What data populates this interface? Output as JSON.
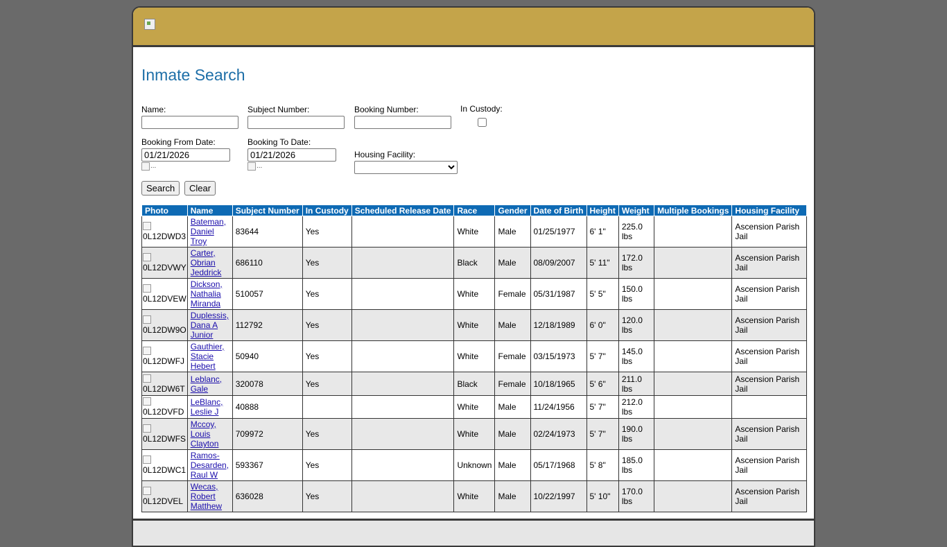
{
  "page": {
    "title": "Inmate Search"
  },
  "form": {
    "name_label": "Name:",
    "name_value": "",
    "subject_label": "Subject Number:",
    "subject_value": "",
    "booking_label": "Booking Number:",
    "booking_value": "",
    "custody_label": "In Custody:",
    "custody_checked": false,
    "from_label": "Booking From Date:",
    "from_value": "01/21/2026",
    "to_label": "Booking To Date:",
    "to_value": "01/21/2026",
    "calendar_alt": "...",
    "housing_label": "Housing Facility:",
    "housing_value": "",
    "search_label": "Search",
    "clear_label": "Clear"
  },
  "table": {
    "headers": [
      "Photo",
      "Name",
      "Subject Number",
      "In Custody",
      "Scheduled Release Date",
      "Race",
      "Gender",
      "Date of Birth",
      "Height",
      "Weight",
      "Multiple Bookings",
      "Housing Facility"
    ],
    "rows": [
      {
        "photo": "0L12DWD3",
        "name": "Bateman, Daniel Troy",
        "subject": "83644",
        "custody": "Yes",
        "release": "",
        "race": "White",
        "gender": "Male",
        "dob": "01/25/1977",
        "height": "6' 1\"",
        "weight": "225.0 lbs",
        "multiple": "",
        "housing": "Ascension Parish Jail"
      },
      {
        "photo": "0L12DVWY",
        "name": "Carter, Obrian Jeddrick",
        "subject": "686110",
        "custody": "Yes",
        "release": "",
        "race": "Black",
        "gender": "Male",
        "dob": "08/09/2007",
        "height": "5' 11\"",
        "weight": "172.0 lbs",
        "multiple": "",
        "housing": "Ascension Parish Jail"
      },
      {
        "photo": "0L12DVEW",
        "name": "Dickson, Nathalia Miranda",
        "subject": "510057",
        "custody": "Yes",
        "release": "",
        "race": "White",
        "gender": "Female",
        "dob": "05/31/1987",
        "height": "5' 5\"",
        "weight": "150.0 lbs",
        "multiple": "",
        "housing": "Ascension Parish Jail"
      },
      {
        "photo": "0L12DW9O",
        "name": "Duplessis, Dana A Junior",
        "subject": "112792",
        "custody": "Yes",
        "release": "",
        "race": "White",
        "gender": "Male",
        "dob": "12/18/1989",
        "height": "6' 0\"",
        "weight": "120.0 lbs",
        "multiple": "",
        "housing": "Ascension Parish Jail"
      },
      {
        "photo": "0L12DWFJ",
        "name": "Gauthier, Stacie Hebert",
        "subject": "50940",
        "custody": "Yes",
        "release": "",
        "race": "White",
        "gender": "Female",
        "dob": "03/15/1973",
        "height": "5' 7\"",
        "weight": "145.0 lbs",
        "multiple": "",
        "housing": "Ascension Parish Jail"
      },
      {
        "photo": "0L12DW6T",
        "name": "Leblanc, Gale",
        "subject": "320078",
        "custody": "Yes",
        "release": "",
        "race": "Black",
        "gender": "Female",
        "dob": "10/18/1965",
        "height": "5' 6\"",
        "weight": "211.0 lbs",
        "multiple": "",
        "housing": "Ascension Parish Jail"
      },
      {
        "photo": "0L12DVFD",
        "name": "LeBlanc, Leslie J",
        "subject": "40888",
        "custody": "",
        "release": "",
        "race": "White",
        "gender": "Male",
        "dob": "11/24/1956",
        "height": "5' 7\"",
        "weight": "212.0 lbs",
        "multiple": "",
        "housing": ""
      },
      {
        "photo": "0L12DWFS",
        "name": "Mccoy, Louis Clayton",
        "subject": "709972",
        "custody": "Yes",
        "release": "",
        "race": "White",
        "gender": "Male",
        "dob": "02/24/1973",
        "height": "5' 7\"",
        "weight": "190.0 lbs",
        "multiple": "",
        "housing": "Ascension Parish Jail"
      },
      {
        "photo": "0L12DWC1",
        "name": "Ramos-Desarden, Raul W",
        "subject": "593367",
        "custody": "Yes",
        "release": "",
        "race": "Unknown",
        "gender": "Male",
        "dob": "05/17/1968",
        "height": "5' 8\"",
        "weight": "185.0 lbs",
        "multiple": "",
        "housing": "Ascension Parish Jail"
      },
      {
        "photo": "0L12DVEL",
        "name": "Wecas, Robert Matthew",
        "subject": "636028",
        "custody": "Yes",
        "release": "",
        "race": "White",
        "gender": "Male",
        "dob": "10/22/1997",
        "height": "5' 10\"",
        "weight": "170.0 lbs",
        "multiple": "",
        "housing": "Ascension Parish Jail"
      }
    ]
  }
}
